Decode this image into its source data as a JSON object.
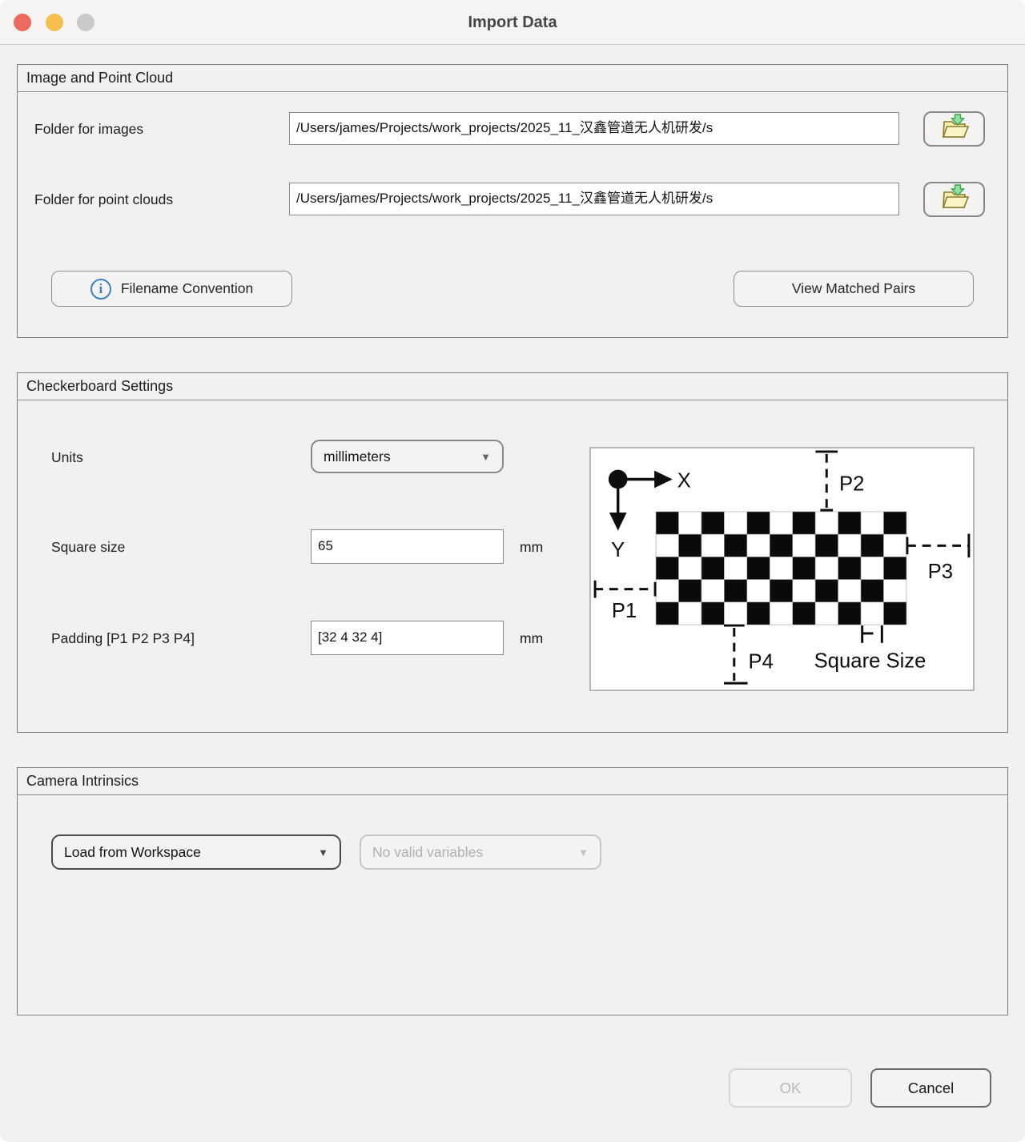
{
  "window": {
    "title": "Import Data"
  },
  "traffic_lights": {
    "close_color": "#ee6a5e",
    "minimize_color": "#f4bf4f",
    "zoom_color": "#cbcac8"
  },
  "image_point_cloud": {
    "title": "Image and Point Cloud",
    "images_label": "Folder for images",
    "images_path": "/Users/james/Projects/work_projects/2025_11_汉鑫管道无人机研发/s",
    "point_clouds_label": "Folder for point clouds",
    "point_clouds_path": "/Users/james/Projects/work_projects/2025_11_汉鑫管道无人机研发/s",
    "filename_convention_label": "Filename Convention",
    "view_matched_pairs_label": "View Matched Pairs"
  },
  "checkerboard": {
    "title": "Checkerboard Settings",
    "units_label": "Units",
    "units_value": "millimeters",
    "square_size_label": "Square size",
    "square_size_value": "65",
    "square_size_unit": "mm",
    "padding_label": "Padding [P1 P2 P3 P4]",
    "padding_value": "[32 4 32 4]",
    "padding_unit": "mm",
    "diagram": {
      "rows": 5,
      "cols": 11,
      "x_axis_label": "X",
      "y_axis_label": "Y",
      "p1_label": "P1",
      "p2_label": "P2",
      "p3_label": "P3",
      "p4_label": "P4",
      "square_size_label": "Square Size"
    }
  },
  "camera_intrinsics": {
    "title": "Camera Intrinsics",
    "source_value": "Load from Workspace",
    "variable_value": "No valid variables"
  },
  "footer": {
    "ok_label": "OK",
    "cancel_label": "Cancel"
  },
  "colors": {
    "accent_blue": "#3b82c4",
    "folder_yellow": "#faf0b4",
    "folder_outline": "#8a7a28",
    "arrow_green": "#8be39b",
    "arrow_green_outline": "#3f9e52"
  }
}
